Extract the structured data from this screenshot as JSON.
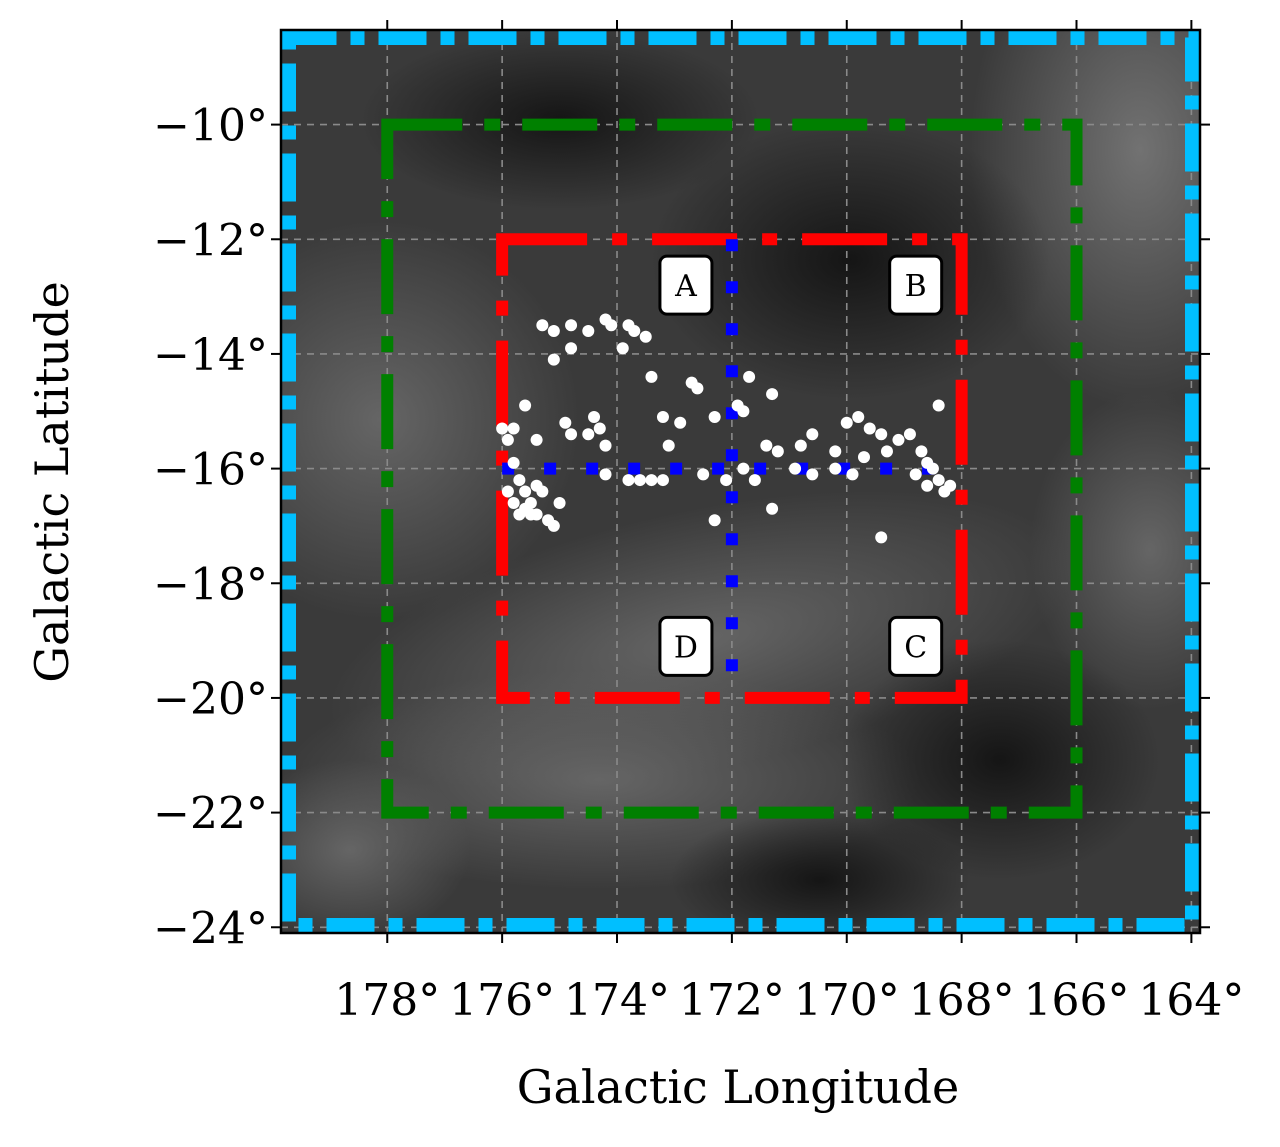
{
  "chart_data": {
    "type": "scatter",
    "xlabel": "Galactic Longitude",
    "ylabel": "Galactic Latitude",
    "xlim": [
      179.85,
      163.85
    ],
    "ylim": [
      -24.1,
      -8.35
    ],
    "x_ticks": [
      178,
      176,
      174,
      172,
      170,
      168,
      166,
      164
    ],
    "x_tick_labels": [
      "178°",
      "176°",
      "174°",
      "172°",
      "170°",
      "168°",
      "166°",
      "164°"
    ],
    "y_ticks": [
      -10,
      -12,
      -14,
      -16,
      -18,
      -20,
      -22,
      -24
    ],
    "y_tick_labels": [
      "−10°",
      "−12°",
      "−14°",
      "−16°",
      "−18°",
      "−20°",
      "−22°",
      "−24°"
    ],
    "grid": true,
    "background": "grayscale dust map",
    "colors": {
      "outer_box": "#00bfff",
      "middle_box": "#008000",
      "inner_box": "#ff0000",
      "cross": "#0000ff",
      "points": "#ffffff"
    },
    "boxes": [
      {
        "name": "outer",
        "lon": [
          179.85,
          163.85
        ],
        "lat": [
          -24.1,
          -8.35
        ],
        "color": "#00bfff",
        "style": "dashdot"
      },
      {
        "name": "middle",
        "lon": [
          178,
          166
        ],
        "lat": [
          -22,
          -10
        ],
        "color": "#008000",
        "style": "dashdot"
      },
      {
        "name": "inner",
        "lon": [
          176,
          168
        ],
        "lat": [
          -20,
          -12
        ],
        "color": "#ff0000",
        "style": "dashdot"
      }
    ],
    "cross": {
      "lon": 172,
      "lat": -16,
      "lon_range": [
        176,
        168
      ],
      "lat_range": [
        -20,
        -12
      ],
      "color": "#0000ff",
      "style": "dotted"
    },
    "regions": [
      {
        "label": "A",
        "lon": 172.8,
        "lat": -12.8
      },
      {
        "label": "B",
        "lon": 168.8,
        "lat": -12.8
      },
      {
        "label": "C",
        "lon": 168.8,
        "lat": -19.1
      },
      {
        "label": "D",
        "lon": 172.8,
        "lat": -19.1
      }
    ],
    "points": [
      [
        175.3,
        -13.5
      ],
      [
        175.1,
        -13.6
      ],
      [
        174.8,
        -13.5
      ],
      [
        174.5,
        -13.6
      ],
      [
        174.2,
        -13.4
      ],
      [
        174.1,
        -13.5
      ],
      [
        173.8,
        -13.5
      ],
      [
        173.7,
        -13.6
      ],
      [
        173.5,
        -13.7
      ],
      [
        175.1,
        -14.1
      ],
      [
        174.8,
        -13.9
      ],
      [
        173.9,
        -13.9
      ],
      [
        173.4,
        -14.4
      ],
      [
        172.7,
        -14.5
      ],
      [
        172.6,
        -14.6
      ],
      [
        171.9,
        -14.9
      ],
      [
        171.7,
        -14.4
      ],
      [
        171.3,
        -14.7
      ],
      [
        175.6,
        -14.9
      ],
      [
        174.9,
        -15.2
      ],
      [
        174.4,
        -15.1
      ],
      [
        174.3,
        -15.3
      ],
      [
        173.2,
        -15.1
      ],
      [
        172.9,
        -15.2
      ],
      [
        172.3,
        -15.1
      ],
      [
        171.8,
        -15.0
      ],
      [
        175.8,
        -15.3
      ],
      [
        175.4,
        -15.5
      ],
      [
        174.8,
        -15.4
      ],
      [
        174.5,
        -15.4
      ],
      [
        174.2,
        -15.6
      ],
      [
        173.1,
        -15.6
      ],
      [
        171.4,
        -15.6
      ],
      [
        171.2,
        -15.7
      ],
      [
        170.8,
        -15.6
      ],
      [
        170.6,
        -15.4
      ],
      [
        170.2,
        -15.7
      ],
      [
        176.0,
        -15.3
      ],
      [
        175.9,
        -15.5
      ],
      [
        175.8,
        -15.9
      ],
      [
        175.7,
        -16.2
      ],
      [
        175.6,
        -16.4
      ],
      [
        175.5,
        -16.6
      ],
      [
        175.4,
        -16.3
      ],
      [
        175.3,
        -16.4
      ],
      [
        175.9,
        -16.4
      ],
      [
        175.8,
        -16.6
      ],
      [
        175.7,
        -16.8
      ],
      [
        175.6,
        -16.7
      ],
      [
        175.5,
        -16.8
      ],
      [
        175.4,
        -16.8
      ],
      [
        175.2,
        -16.9
      ],
      [
        175.1,
        -17.0
      ],
      [
        175.0,
        -16.6
      ],
      [
        174.2,
        -16.1
      ],
      [
        173.8,
        -16.2
      ],
      [
        173.6,
        -16.2
      ],
      [
        173.4,
        -16.2
      ],
      [
        173.2,
        -16.2
      ],
      [
        172.5,
        -16.1
      ],
      [
        172.3,
        -16.9
      ],
      [
        172.1,
        -16.2
      ],
      [
        171.8,
        -16.0
      ],
      [
        171.6,
        -16.2
      ],
      [
        171.3,
        -16.7
      ],
      [
        170.9,
        -16.0
      ],
      [
        170.6,
        -16.1
      ],
      [
        170.2,
        -16.0
      ],
      [
        169.9,
        -16.1
      ],
      [
        169.7,
        -15.8
      ],
      [
        169.6,
        -15.3
      ],
      [
        169.4,
        -15.4
      ],
      [
        169.3,
        -15.7
      ],
      [
        169.1,
        -15.5
      ],
      [
        168.9,
        -15.4
      ],
      [
        168.7,
        -15.7
      ],
      [
        168.6,
        -15.9
      ],
      [
        168.5,
        -16.0
      ],
      [
        168.4,
        -16.2
      ],
      [
        168.6,
        -16.3
      ],
      [
        168.8,
        -16.1
      ],
      [
        168.3,
        -16.4
      ],
      [
        168.2,
        -16.3
      ],
      [
        168.4,
        -14.9
      ],
      [
        169.4,
        -17.2
      ],
      [
        169.8,
        -15.1
      ],
      [
        170.0,
        -15.2
      ]
    ]
  }
}
